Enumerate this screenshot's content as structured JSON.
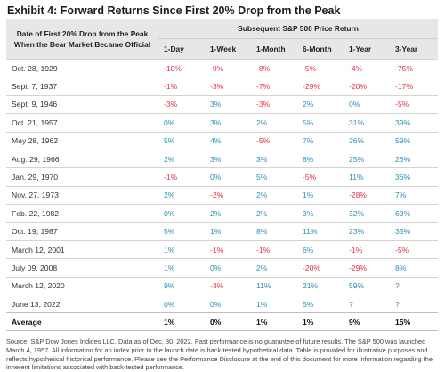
{
  "title": "Exhibit 4: Forward Returns Since First 20% Drop from the Peak",
  "header": {
    "date_col": "Date of First 20% Drop from the Peak When the Bear Market Became Official",
    "group": "Subsequent S&P 500 Price Return",
    "periods": [
      "1-Day",
      "1-Week",
      "1-Month",
      "6-Month",
      "1-Year",
      "3-Year"
    ]
  },
  "rows": [
    {
      "date": "Oct. 28, 1929",
      "values": [
        "-10%",
        "-9%",
        "-8%",
        "-5%",
        "-4%",
        "-75%"
      ]
    },
    {
      "date": "Sept. 7, 1937",
      "values": [
        "-1%",
        "-3%",
        "-7%",
        "-29%",
        "-20%",
        "-17%"
      ]
    },
    {
      "date": "Sept. 9, 1946",
      "values": [
        "-3%",
        "3%",
        "-3%",
        "2%",
        "0%",
        "-5%"
      ]
    },
    {
      "date": "Oct. 21, 1957",
      "values": [
        "0%",
        "3%",
        "2%",
        "5%",
        "31%",
        "39%"
      ]
    },
    {
      "date": "May 28, 1962",
      "values": [
        "5%",
        "4%",
        "-5%",
        "7%",
        "26%",
        "59%"
      ]
    },
    {
      "date": "Aug. 29, 1966",
      "values": [
        "2%",
        "3%",
        "3%",
        "8%",
        "25%",
        "26%"
      ]
    },
    {
      "date": "Jan. 29, 1970",
      "values": [
        "-1%",
        "0%",
        "5%",
        "-5%",
        "11%",
        "36%"
      ]
    },
    {
      "date": "Nov. 27, 1973",
      "values": [
        "2%",
        "-2%",
        "2%",
        "1%",
        "-28%",
        "7%"
      ]
    },
    {
      "date": "Feb. 22, 1982",
      "values": [
        "0%",
        "2%",
        "2%",
        "3%",
        "32%",
        "63%"
      ]
    },
    {
      "date": "Oct. 19, 1987",
      "values": [
        "5%",
        "1%",
        "8%",
        "11%",
        "23%",
        "35%"
      ]
    },
    {
      "date": "March 12, 2001",
      "values": [
        "1%",
        "-1%",
        "-1%",
        "6%",
        "-1%",
        "-5%"
      ]
    },
    {
      "date": "July 09, 2008",
      "values": [
        "1%",
        "0%",
        "2%",
        "-20%",
        "-29%",
        "8%"
      ]
    },
    {
      "date": "March 12, 2020",
      "values": [
        "9%",
        "-3%",
        "11%",
        "21%",
        "59%",
        "?"
      ]
    },
    {
      "date": "June 13, 2022",
      "values": [
        "0%",
        "0%",
        "1%",
        "5%",
        "?",
        "?"
      ]
    }
  ],
  "average": {
    "label": "Average",
    "values": [
      "1%",
      "0%",
      "1%",
      "1%",
      "9%",
      "15%"
    ]
  },
  "source": "Source: S&P Dow Jones Indices LLC. Data as of Dec. 30, 2022.  Past performance is no guarantee of future results. The S&P 500 was launched March 4, 1957. All information for an index prior to the launch date is back-tested hypothetical data. Table is provided for illustrative purposes and reflects hypothetical historical performance. Please see the Performance Disclosure at the end of this document for more information regarding the inherent limitations associated with back-tested performance.",
  "colors": {
    "positive": "#2e8fb5",
    "negative": "#e0334a",
    "header_bg": "#e7e7e7"
  }
}
